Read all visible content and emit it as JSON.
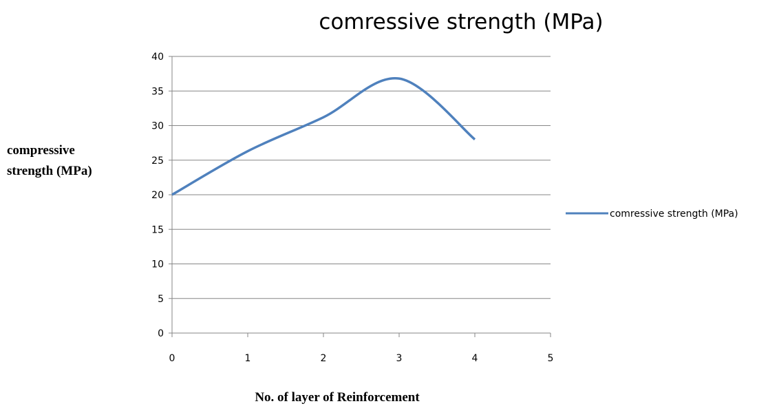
{
  "chart_data": {
    "type": "line",
    "title": "comressive strength (MPa)",
    "xlabel": "No. of layer of Reinforcement",
    "ylabel_lines": [
      "compressive",
      "strength (MPa)"
    ],
    "xlim": [
      0,
      5
    ],
    "ylim": [
      0,
      40
    ],
    "x_ticks": [
      "0",
      "1",
      "2",
      "3",
      "4",
      "5"
    ],
    "y_ticks": [
      "0",
      "5",
      "10",
      "15",
      "20",
      "25",
      "30",
      "35",
      "40"
    ],
    "grid": "horizontal",
    "legend_position": "right",
    "series": [
      {
        "name": "comressive strength (MPa)",
        "color": "#4f81bd",
        "smooth": true,
        "x": [
          0,
          1,
          2,
          3,
          4
        ],
        "y": [
          20,
          26.3,
          31.2,
          36.8,
          28
        ]
      }
    ]
  }
}
